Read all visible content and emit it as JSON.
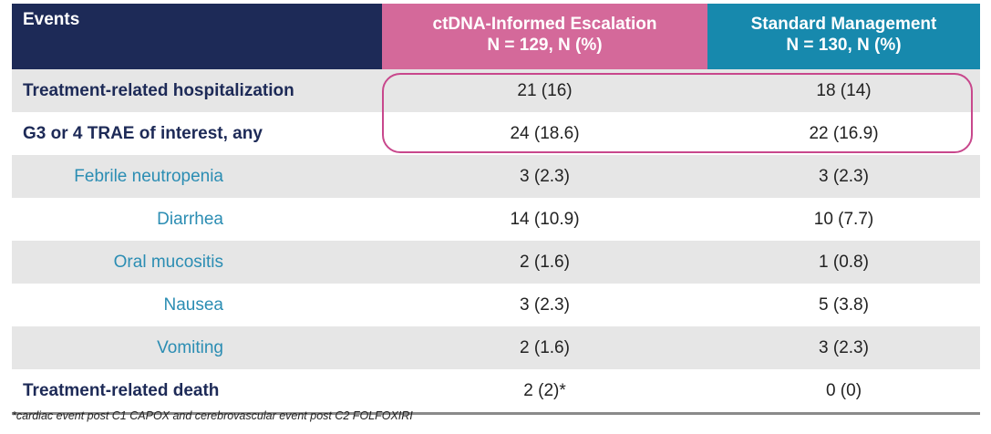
{
  "chart_data": {
    "type": "table",
    "title": "",
    "columns": [
      {
        "label": "Events",
        "sublabel": ""
      },
      {
        "label": "ctDNA-Informed Escalation",
        "sublabel": "N = 129, N (%)"
      },
      {
        "label": "Standard Management",
        "sublabel": "N = 130, N (%)"
      }
    ],
    "rows": [
      {
        "event": "Treatment-related hospitalization",
        "ctdna": "21 (16)",
        "standard": "18 (14)"
      },
      {
        "event": "G3 or 4 TRAE of interest, any",
        "ctdna": "24 (18.6)",
        "standard": "22 (16.9)"
      },
      {
        "event": "Febrile neutropenia",
        "ctdna": "3 (2.3)",
        "standard": "3 (2.3)"
      },
      {
        "event": "Diarrhea",
        "ctdna": "14 (10.9)",
        "standard": "10 (7.7)"
      },
      {
        "event": "Oral mucositis",
        "ctdna": "2 (1.6)",
        "standard": "1 (0.8)"
      },
      {
        "event": "Nausea",
        "ctdna": "3 (2.3)",
        "standard": "5 (3.8)"
      },
      {
        "event": "Vomiting",
        "ctdna": "2 (1.6)",
        "standard": "3 (2.3)"
      },
      {
        "event": "Treatment-related death",
        "ctdna": "2 (2)*",
        "standard": "0 (0)"
      }
    ],
    "footnote": "*cardiac event post C1 CAPOX and cerebrovascular event post C2 FOLFOXIRI"
  },
  "colors": {
    "header_events": "#1d2a57",
    "header_ctdna": "#d4699a",
    "header_standard": "#1789ad",
    "highlight": "#c8478c",
    "sub_event_text": "#2b8db3"
  }
}
